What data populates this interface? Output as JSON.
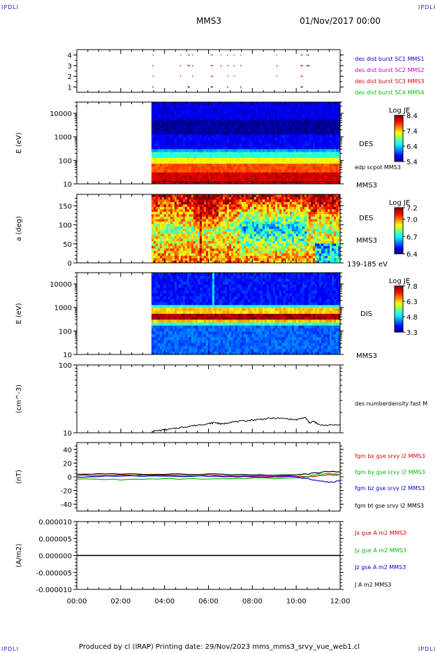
{
  "header": {
    "spacecraft": "MMS3",
    "datetime": "01/Nov/2017 00:00",
    "corner_tl": "IPDLI",
    "corner_tr": "IPDLI",
    "corner_bl": "IPDLI",
    "corner_br": "IPDLI"
  },
  "footer": {
    "text": "Produced by cl (IRAP)   Printing date: 29/Nov/2023   mms_mms3_srvy_vue_web1.cl"
  },
  "chart_data": [
    {
      "type": "scatter",
      "id": "burst",
      "yticks": [
        "1",
        "2",
        "3",
        "4"
      ],
      "ylim": [
        0.5,
        4.5
      ],
      "legend": [
        {
          "label": "des dist burst SC1 MMS1",
          "color": "#0000cc"
        },
        {
          "label": "des dist burst SC2 MMS2",
          "color": "#cc00cc"
        },
        {
          "label": "des dist burst SC3 MMS3",
          "color": "#dd0000"
        },
        {
          "label": "des dist burst SC4 MMS4",
          "color": "#00bb00"
        }
      ],
      "segments": [
        [
          3.45,
          3.5
        ],
        [
          4.7,
          4.75
        ],
        [
          5.05,
          5.15
        ],
        [
          5.25,
          5.3
        ],
        [
          6.1,
          6.2
        ],
        [
          6.55,
          6.6
        ],
        [
          6.85,
          6.9
        ],
        [
          7.15,
          7.2
        ],
        [
          7.45,
          7.5
        ],
        [
          9.1,
          9.15
        ],
        [
          10.2,
          10.3
        ],
        [
          10.45,
          10.6
        ]
      ]
    },
    {
      "type": "heatmap",
      "id": "des-energy",
      "ylabel": "E (eV)",
      "yscale": "log",
      "ylim": [
        10,
        30000
      ],
      "yticks": [
        "10",
        "100",
        "1000",
        "10000"
      ],
      "data_start_hour": 3.4,
      "colorbar": {
        "title": "Log JE",
        "ticks": [
          "5.4",
          "6.4",
          "7.4",
          "8.4"
        ],
        "min": 5.4,
        "max": 8.4
      },
      "labels": [
        "DES",
        "edp scpot MMS3",
        "MMS3"
      ]
    },
    {
      "type": "heatmap",
      "id": "des-pitch",
      "ylabel": "a (deg)",
      "ylim": [
        0,
        180
      ],
      "yticks": [
        "0",
        "50",
        "100",
        "150"
      ],
      "data_start_hour": 3.4,
      "colorbar": {
        "title": "Log JE",
        "ticks": [
          "6.4",
          "6.7",
          "7.0",
          "7.2"
        ],
        "min": 6.4,
        "max": 7.2
      },
      "labels": [
        "DES",
        "MMS3",
        "139-185 eV"
      ]
    },
    {
      "type": "heatmap",
      "id": "dis-energy",
      "ylabel": "E (eV)",
      "yscale": "log",
      "ylim": [
        10,
        30000
      ],
      "yticks": [
        "10",
        "100",
        "1000",
        "10000"
      ],
      "data_start_hour": 3.4,
      "colorbar": {
        "title": "Log JE",
        "ticks": [
          "3.3",
          "4.8",
          "6.3",
          "7.8"
        ],
        "min": 3.3,
        "max": 7.8
      },
      "labels": [
        "DIS",
        "MMS3"
      ]
    },
    {
      "type": "line",
      "id": "density",
      "ylabel": "(cm^-3)",
      "yscale": "log",
      "ylim": [
        10,
        100
      ],
      "yticks": [
        "10",
        "100"
      ],
      "series": [
        {
          "name": "des numberdensity fast M",
          "color": "#000000",
          "x": [
            3.4,
            4.0,
            4.5,
            5.0,
            5.5,
            6.0,
            6.3,
            6.6,
            7.0,
            7.5,
            8.0,
            8.5,
            9.0,
            9.5,
            10.0,
            10.4,
            10.6,
            10.8,
            11.0,
            11.5,
            12.0
          ],
          "y": [
            10.5,
            11.0,
            11.6,
            12.3,
            13.0,
            13.6,
            14.2,
            13.4,
            14.4,
            14.8,
            15.4,
            16.0,
            16.4,
            16.2,
            15.5,
            16.8,
            14.0,
            14.8,
            13.2,
            12.9,
            13.3
          ]
        }
      ]
    },
    {
      "type": "line",
      "id": "fgm",
      "ylabel": "(nT)",
      "ylim": [
        -50,
        50
      ],
      "yticks": [
        "-40",
        "-20",
        "0",
        "20",
        "40"
      ],
      "series": [
        {
          "name": "fgm bx gse srvy l2 MMS3",
          "color": "#dd0000",
          "x": [
            0,
            2,
            4,
            6,
            8,
            10,
            10.5,
            11,
            11.5,
            12
          ],
          "y": [
            2,
            2,
            2,
            2,
            1,
            1,
            0,
            2,
            3,
            3
          ]
        },
        {
          "name": "fgm by gse srvy l2 MMS3",
          "color": "#00bb00",
          "x": [
            0,
            2,
            4,
            6,
            8,
            10,
            10.5,
            11,
            11.5,
            12
          ],
          "y": [
            -3,
            -4,
            -3,
            -3,
            -2,
            -2,
            0,
            4,
            5,
            3
          ]
        },
        {
          "name": "fgm bz gse srvy l2 MMS3",
          "color": "#0000cc",
          "x": [
            0,
            2,
            4,
            6,
            8,
            10,
            10.5,
            11,
            11.5,
            12
          ],
          "y": [
            0,
            1,
            1,
            1,
            0,
            0,
            -3,
            -6,
            -8,
            -6
          ]
        },
        {
          "name": "fgm bt gse srvy l2 MMS3",
          "color": "#000000",
          "x": [
            0,
            2,
            4,
            6,
            8,
            10,
            10.5,
            11,
            11.5,
            12
          ],
          "y": [
            4,
            4,
            4,
            4,
            3,
            3,
            4,
            6,
            8,
            7
          ]
        }
      ]
    },
    {
      "type": "line",
      "id": "current",
      "ylabel": "(A/m2)",
      "ylim": [
        -1e-05,
        1e-05
      ],
      "yticks": [
        "-0.000010",
        "-0.000005",
        "0.000000",
        "0.000005",
        "0.000010"
      ],
      "series": [
        {
          "name": "Jx gse A m2 MMS3",
          "color": "#dd0000",
          "x": [
            0,
            12
          ],
          "y": [
            0,
            0
          ]
        },
        {
          "name": "Jy gse A m2 MMS3",
          "color": "#00bb00",
          "x": [
            0,
            12
          ],
          "y": [
            0,
            0
          ]
        },
        {
          "name": "Jz gse A m2 MMS3",
          "color": "#0000cc",
          "x": [
            0,
            12
          ],
          "y": [
            0,
            0
          ]
        },
        {
          "name": "J A m2 MMS3",
          "color": "#000000",
          "x": [
            0,
            12
          ],
          "y": [
            0,
            0
          ]
        }
      ]
    }
  ],
  "xaxis": {
    "ticks": [
      "00:00",
      "02:00",
      "04:00",
      "06:00",
      "08:00",
      "10:00",
      "12:00"
    ],
    "xlim": [
      0,
      12
    ]
  }
}
